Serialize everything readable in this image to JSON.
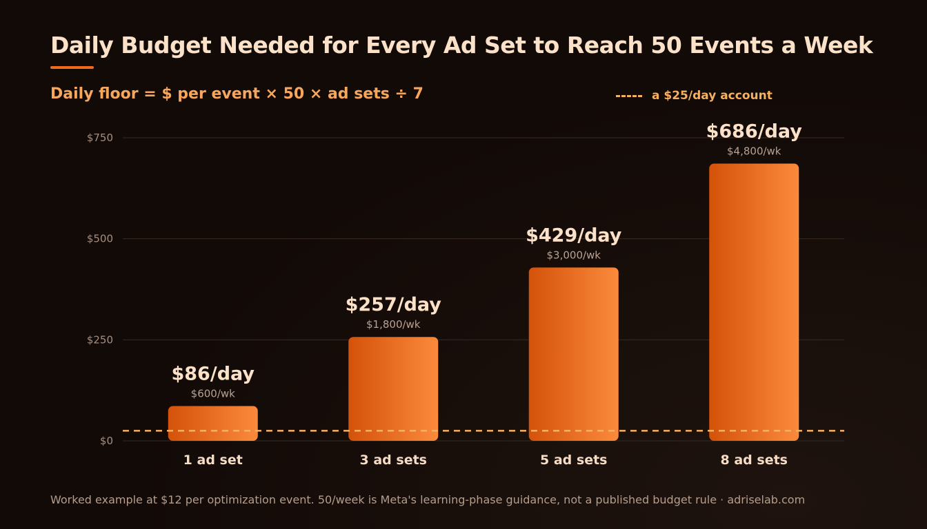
{
  "chart_data": {
    "type": "bar",
    "title": "Daily Budget Needed for Every Ad Set to Reach 50 Events a Week",
    "subtitle": "Daily floor = $ per event × 50 × ad sets ÷ 7",
    "categories": [
      "1 ad set",
      "3 ad sets",
      "5 ad sets",
      "8 ad sets"
    ],
    "values": [
      86,
      257,
      429,
      686
    ],
    "data_labels": [
      "$86/day",
      "$257/day",
      "$429/day",
      "$686/day"
    ],
    "secondary_labels": [
      "$600/wk",
      "$1,800/wk",
      "$3,000/wk",
      "$4,800/wk"
    ],
    "ylim": [
      0,
      750
    ],
    "yticks": [
      0,
      250,
      500,
      750
    ],
    "ytick_labels": [
      "$0",
      "$250",
      "$500",
      "$750"
    ],
    "reference_line": {
      "value": 25,
      "label": "a $25/day account"
    },
    "grid": true,
    "legend_position": "top-right",
    "colors": {
      "bar_start": "#d4520a",
      "bar_end": "#fb8a3c",
      "reference": "#f7b060",
      "accent": "#f06a1c"
    }
  },
  "footnote": "Worked example at $12 per optimization event. 50/week is Meta's learning-phase guidance, not a published budget rule · adriselab.com"
}
